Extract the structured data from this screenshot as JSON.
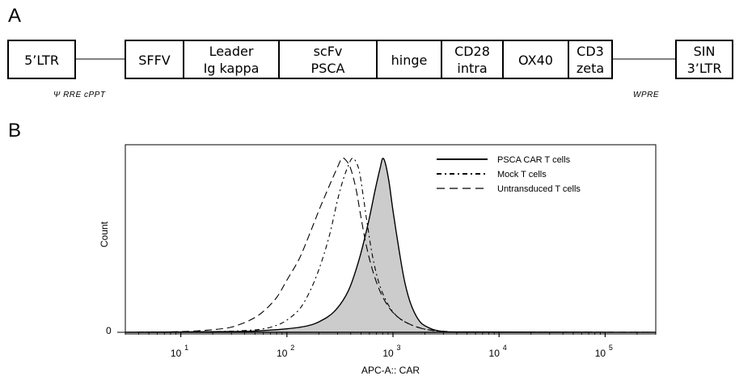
{
  "panel_a": {
    "label": "A",
    "segments": [
      {
        "line1": "5’LTR",
        "line2": ""
      },
      {
        "line1": "SFFV",
        "line2": ""
      },
      {
        "line1": "Leader",
        "line2": "Ig kappa"
      },
      {
        "line1": "scFv",
        "line2": "PSCA"
      },
      {
        "line1": "hinge",
        "line2": ""
      },
      {
        "line1": "CD28",
        "line2": "intra"
      },
      {
        "line1": "OX40",
        "line2": ""
      },
      {
        "line1": "CD3",
        "line2": "zeta"
      },
      {
        "line1": "SIN",
        "line2": "3’LTR"
      }
    ],
    "annotations": {
      "left": "Ψ RRE cPPT",
      "right": "WPRE"
    }
  },
  "panel_b": {
    "label": "B"
  },
  "chart_data": {
    "type": "line",
    "xlabel": "APC-A:: CAR",
    "ylabel": "Count",
    "x_scale": "log",
    "xlim": [
      3,
      300000
    ],
    "ylim": [
      0,
      1
    ],
    "y_tick_labels": [
      "0"
    ],
    "x_tick_labels": [
      {
        "value": 10,
        "base": "10",
        "exp": "1"
      },
      {
        "value": 100,
        "base": "10",
        "exp": "2"
      },
      {
        "value": 1000,
        "base": "10",
        "exp": "3"
      },
      {
        "value": 10000,
        "base": "10",
        "exp": "4"
      },
      {
        "value": 100000,
        "base": "10",
        "exp": "5"
      }
    ],
    "grid": false,
    "legend_position": "top-right",
    "series": [
      {
        "name": "PSCA CAR T cells",
        "style": "solid-filled",
        "fill": "#cccccc",
        "x": [
          3,
          30,
          60,
          100,
          150,
          200,
          280,
          380,
          480,
          580,
          680,
          760,
          800,
          850,
          920,
          1000,
          1150,
          1300,
          1500,
          1800,
          2200,
          2600,
          3200,
          5000,
          300000
        ],
        "y": [
          0,
          0.004,
          0.01,
          0.02,
          0.035,
          0.06,
          0.12,
          0.24,
          0.42,
          0.62,
          0.82,
          0.95,
          1.0,
          0.97,
          0.86,
          0.7,
          0.46,
          0.28,
          0.15,
          0.06,
          0.025,
          0.01,
          0.004,
          0.002,
          0.0
        ]
      },
      {
        "name": "Mock T cells",
        "style": "dash-dot",
        "x": [
          3,
          20,
          40,
          60,
          80,
          100,
          130,
          160,
          200,
          250,
          300,
          340,
          380,
          410,
          440,
          480,
          520,
          580,
          650,
          750,
          900,
          1100,
          1400,
          1800,
          2300,
          3000,
          5000,
          300000
        ],
        "y": [
          0,
          0.004,
          0.01,
          0.02,
          0.04,
          0.07,
          0.13,
          0.22,
          0.36,
          0.55,
          0.76,
          0.88,
          0.96,
          1.0,
          0.99,
          0.93,
          0.8,
          0.6,
          0.42,
          0.27,
          0.16,
          0.09,
          0.05,
          0.025,
          0.012,
          0.005,
          0.002,
          0.0
        ]
      },
      {
        "name": "Untransduced T cells",
        "style": "dashed",
        "x": [
          3,
          10,
          20,
          30,
          45,
          60,
          80,
          100,
          130,
          160,
          200,
          250,
          300,
          330,
          360,
          400,
          450,
          500,
          560,
          640,
          750,
          900,
          1100,
          1400,
          1800,
          2300,
          3000,
          5000,
          300000
        ],
        "y": [
          0,
          0.004,
          0.015,
          0.03,
          0.07,
          0.12,
          0.2,
          0.3,
          0.42,
          0.55,
          0.7,
          0.84,
          0.95,
          1.0,
          0.99,
          0.94,
          0.82,
          0.66,
          0.5,
          0.36,
          0.24,
          0.15,
          0.09,
          0.05,
          0.025,
          0.012,
          0.005,
          0.002,
          0.0
        ]
      }
    ]
  }
}
